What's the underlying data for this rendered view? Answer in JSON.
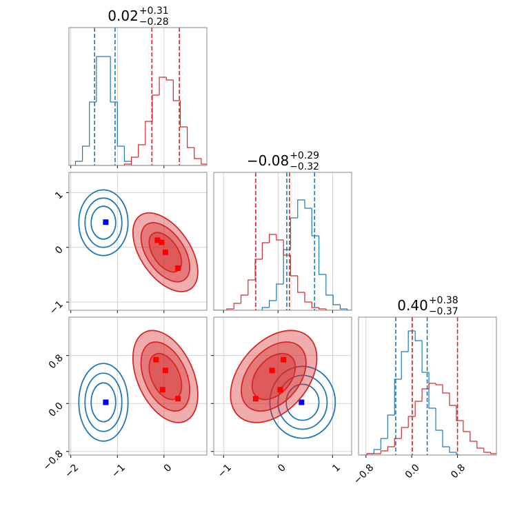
{
  "chart_data": [
    {
      "type": "histogram",
      "title": {
        "main": "0.02",
        "upper": "+0.31",
        "lower": "−0.28"
      },
      "xlim": [
        -2.04,
        0.92
      ],
      "xticks": [
        {
          "value": -2,
          "label": "−2"
        },
        {
          "value": -1,
          "label": "−1"
        },
        0
      ],
      "ylim": [
        0,
        100
      ],
      "grid": true,
      "bins": [
        -2.05,
        -1.9,
        -1.75,
        -1.6,
        -1.45,
        -1.3,
        -1.15,
        -1.0,
        -0.85,
        -0.7,
        -0.55,
        -0.4,
        -0.25,
        -0.1,
        0.05,
        0.2,
        0.35,
        0.5,
        0.65,
        0.8,
        0.95
      ],
      "series": [
        {
          "color": "#1f77b4",
          "values": [
            0,
            3,
            14,
            46,
            79,
            79,
            46,
            14,
            3,
            0,
            0,
            0,
            0,
            0,
            0,
            0,
            0,
            0,
            0,
            0
          ],
          "quantiles": [
            -1.49,
            -1.05
          ]
        },
        {
          "color": "#d62728",
          "values": [
            0,
            0,
            0,
            0,
            0,
            0,
            0,
            0,
            1,
            6,
            15,
            32,
            51,
            64,
            62,
            47,
            28,
            13,
            5,
            1
          ],
          "quantiles": [
            -0.26,
            0.33
          ]
        }
      ]
    },
    {
      "type": "contour",
      "xlim": [
        -2.04,
        0.92
      ],
      "xticks": [
        {
          "value": -2,
          "label": "−2"
        },
        {
          "value": -1,
          "label": "−1"
        },
        0
      ],
      "ylim": [
        -1.15,
        1.37
      ],
      "yticks": [
        {
          "value": -1,
          "label": "−1"
        },
        0,
        1
      ],
      "grid": true,
      "levels": [
        1.2,
        1.8,
        2.4
      ],
      "series": [
        {
          "color": "#1f77b4",
          "fill": false,
          "mean": [
            -1.3,
            0.45
          ],
          "sd": [
            0.22,
            0.25
          ],
          "rho": 0,
          "point_color": "#0000ff",
          "points": {
            "x": [
              -1.25
            ],
            "y": [
              0.46
            ]
          }
        },
        {
          "color": "#d62728",
          "fill": true,
          "mean": [
            0.03,
            -0.09
          ],
          "sd": [
            0.29,
            0.3
          ],
          "rho": -0.5,
          "point_color": "#ff0000",
          "points": {
            "x": [
              -0.14,
              -0.05,
              0.03,
              0.3
            ],
            "y": [
              0.13,
              0.09,
              -0.09,
              -0.38
            ]
          }
        }
      ]
    },
    {
      "type": "histogram",
      "title": {
        "main": "−0.08",
        "upper": "+0.29",
        "lower": "−0.32"
      },
      "xlim": [
        -1.18,
        1.35
      ],
      "xticks": [
        {
          "value": -1,
          "label": "−1"
        },
        0,
        1
      ],
      "ylim": [
        0,
        100
      ],
      "grid": true,
      "bins": [
        -1.2,
        -1.07,
        -0.94,
        -0.81,
        -0.68,
        -0.55,
        -0.42,
        -0.29,
        -0.16,
        -0.03,
        0.1,
        0.23,
        0.36,
        0.49,
        0.62,
        0.75,
        0.88,
        1.01,
        1.14,
        1.27,
        1.4
      ],
      "series": [
        {
          "color": "#1f77b4",
          "values": [
            0,
            0,
            0,
            0,
            0,
            0,
            0,
            2,
            7,
            19,
            44,
            67,
            80,
            74,
            54,
            26,
            11,
            4,
            1,
            0
          ],
          "quantiles": [
            0.16,
            0.67
          ]
        },
        {
          "color": "#d62728",
          "values": [
            0,
            0,
            1,
            5,
            11,
            22,
            37,
            49,
            55,
            51,
            40,
            25,
            13,
            6,
            2,
            1,
            0,
            0,
            0,
            0
          ],
          "quantiles": [
            -0.41,
            0.21
          ]
        }
      ]
    },
    {
      "type": "contour",
      "xlim": [
        -2.04,
        0.92
      ],
      "xticks": [
        {
          "value": -2,
          "label": "−2"
        },
        {
          "value": -1,
          "label": "−1"
        },
        0
      ],
      "ylim": [
        -0.86,
        1.44
      ],
      "yticks": [
        {
          "value": -0.8,
          "label": "−0.8"
        },
        {
          "value": 0,
          "label": "0.0"
        },
        {
          "value": 0.8,
          "label": "0.8"
        }
      ],
      "grid": true,
      "levels": [
        1.2,
        1.8,
        2.4
      ],
      "series": [
        {
          "color": "#1f77b4",
          "fill": false,
          "mean": [
            -1.3,
            0.02
          ],
          "sd": [
            0.22,
            0.27
          ],
          "rho": 0,
          "point_color": "#0000ff",
          "points": {
            "x": [
              -1.25
            ],
            "y": [
              0.02
            ]
          }
        },
        {
          "color": "#d62728",
          "fill": true,
          "mean": [
            0.03,
            0.45
          ],
          "sd": [
            0.29,
            0.32
          ],
          "rho": -0.4,
          "point_color": "#ff0000",
          "points": {
            "x": [
              -0.17,
              0.03,
              -0.03,
              0.3
            ],
            "y": [
              0.73,
              0.55,
              0.23,
              0.08
            ]
          }
        }
      ]
    },
    {
      "type": "contour",
      "xlim": [
        -1.18,
        1.35
      ],
      "xticks": [
        {
          "value": -1,
          "label": "−1"
        },
        0,
        1
      ],
      "ylim": [
        -0.86,
        1.44
      ],
      "yticks": [
        {
          "value": -0.8,
          "label": "−0.8"
        },
        {
          "value": 0,
          "label": "0.0"
        },
        {
          "value": 0.8,
          "label": "0.8"
        }
      ],
      "grid": true,
      "levels": [
        1.2,
        1.8,
        2.4
      ],
      "series": [
        {
          "color": "#1f77b4",
          "fill": false,
          "mean": [
            0.45,
            0.02
          ],
          "sd": [
            0.25,
            0.25
          ],
          "rho": 0,
          "point_color": "#0000ff",
          "points": {
            "x": [
              0.43
            ],
            "y": [
              0.02
            ]
          }
        },
        {
          "color": "#d62728",
          "fill": true,
          "mean": [
            -0.08,
            0.45
          ],
          "sd": [
            0.33,
            0.32
          ],
          "rho": 0.4,
          "point_color": "#ff0000",
          "points": {
            "x": [
              0.1,
              -0.11,
              0.04,
              -0.41
            ],
            "y": [
              0.73,
              0.55,
              0.23,
              0.08
            ]
          }
        }
      ]
    },
    {
      "type": "histogram",
      "title": {
        "main": "0.40",
        "upper": "+0.38",
        "lower": "−0.37"
      },
      "xlim": [
        -0.93,
        1.48
      ],
      "xticks": [
        {
          "value": -0.8,
          "label": "−0.8"
        },
        {
          "value": 0,
          "label": "0.0"
        },
        {
          "value": 0.8,
          "label": "0.8"
        }
      ],
      "ylim": [
        0,
        100
      ],
      "grid": true,
      "bins": [
        -0.9,
        -0.78,
        -0.66,
        -0.54,
        -0.42,
        -0.3,
        -0.18,
        -0.06,
        0.06,
        0.18,
        0.3,
        0.42,
        0.54,
        0.66,
        0.78,
        0.9,
        1.02,
        1.14,
        1.26,
        1.38,
        1.5
      ],
      "series": [
        {
          "color": "#1f77b4",
          "values": [
            0,
            1,
            4,
            12,
            29,
            55,
            75,
            90,
            83,
            60,
            34,
            18,
            6,
            2,
            0,
            0,
            0,
            0,
            0,
            0
          ],
          "quantiles": [
            -0.28,
            0.27
          ]
        },
        {
          "color": "#d62728",
          "values": [
            0,
            1,
            1,
            3,
            6,
            12,
            20,
            28,
            39,
            48,
            52,
            51,
            45,
            36,
            25,
            17,
            10,
            5,
            2,
            1
          ],
          "quantiles": [
            0.01,
            0.8
          ]
        }
      ]
    }
  ]
}
